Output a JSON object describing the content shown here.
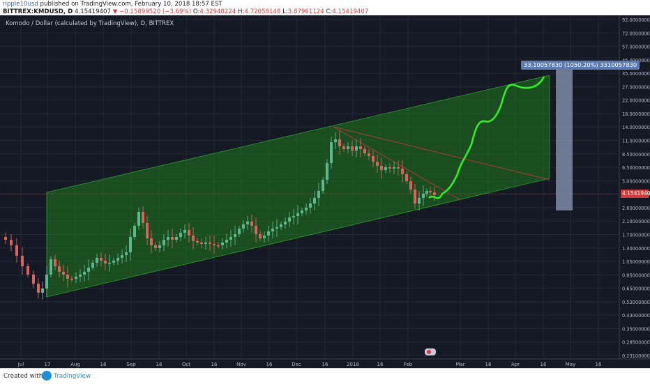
{
  "header": {
    "author": "ripple10usd",
    "published_text": " published on TradingView.com, February 10, 2018 18:57 EST",
    "symbol": "BITTREX:KMDUSD, D",
    "last": "4.15419407",
    "change": "▼ −0.15899520 (−3.69%)",
    "o_label": "O:",
    "o_value": "4.32948224",
    "h_label": "H:",
    "h_value": "4.72058148",
    "l_label": "L:",
    "l_value": "3.87961124",
    "c_label": "C:",
    "c_value": "4.15419407"
  },
  "chart": {
    "title": "Komodo / Dollar (calculated by TradingView), D, BITTREX",
    "annotation": "33.10057830 (1050.20%) 3310057830",
    "last_price_label": "4.15419407",
    "price_axis": [
      "92.00000000",
      "72.00000000",
      "57.00000000",
      "45.00000000",
      "35.00000000",
      "27.00000000",
      "22.00000000",
      "18.00000000",
      "14.00000000",
      "11.00000000",
      "8.50000000",
      "6.50000000",
      "5.00000000",
      "3.20000000",
      "2.60000000",
      "2.10000000",
      "1.70000000",
      "1.30000000",
      "1.05000000",
      "0.85000000",
      "0.65000000",
      "0.53000000",
      "0.43000000",
      "0.35000000",
      "0.28500000",
      "0.23100000"
    ],
    "time_axis": [
      "Jul",
      "17",
      "Aug",
      "16",
      "Sep",
      "16",
      "Oct",
      "16",
      "Nov",
      "16",
      "Dec",
      "16",
      "2018",
      "16",
      "Feb",
      "Mar",
      "16",
      "Apr",
      "16",
      "May",
      "16"
    ],
    "colors": {
      "background": "#151924",
      "channel_fill": "#1f7a1f",
      "up": "#5cb88a",
      "down": "#d9645f",
      "projection": "#33ee22",
      "target_box": "#8a9ab5"
    }
  },
  "chart_data": {
    "type": "candlestick",
    "symbol": "KMDUSD",
    "log_scale": true,
    "current_close": 4.15419407,
    "annotation": "33.10057830 (1050.20%) 3310057830"
  },
  "footer": {
    "created": "Created with",
    "brand": "TradingView"
  }
}
